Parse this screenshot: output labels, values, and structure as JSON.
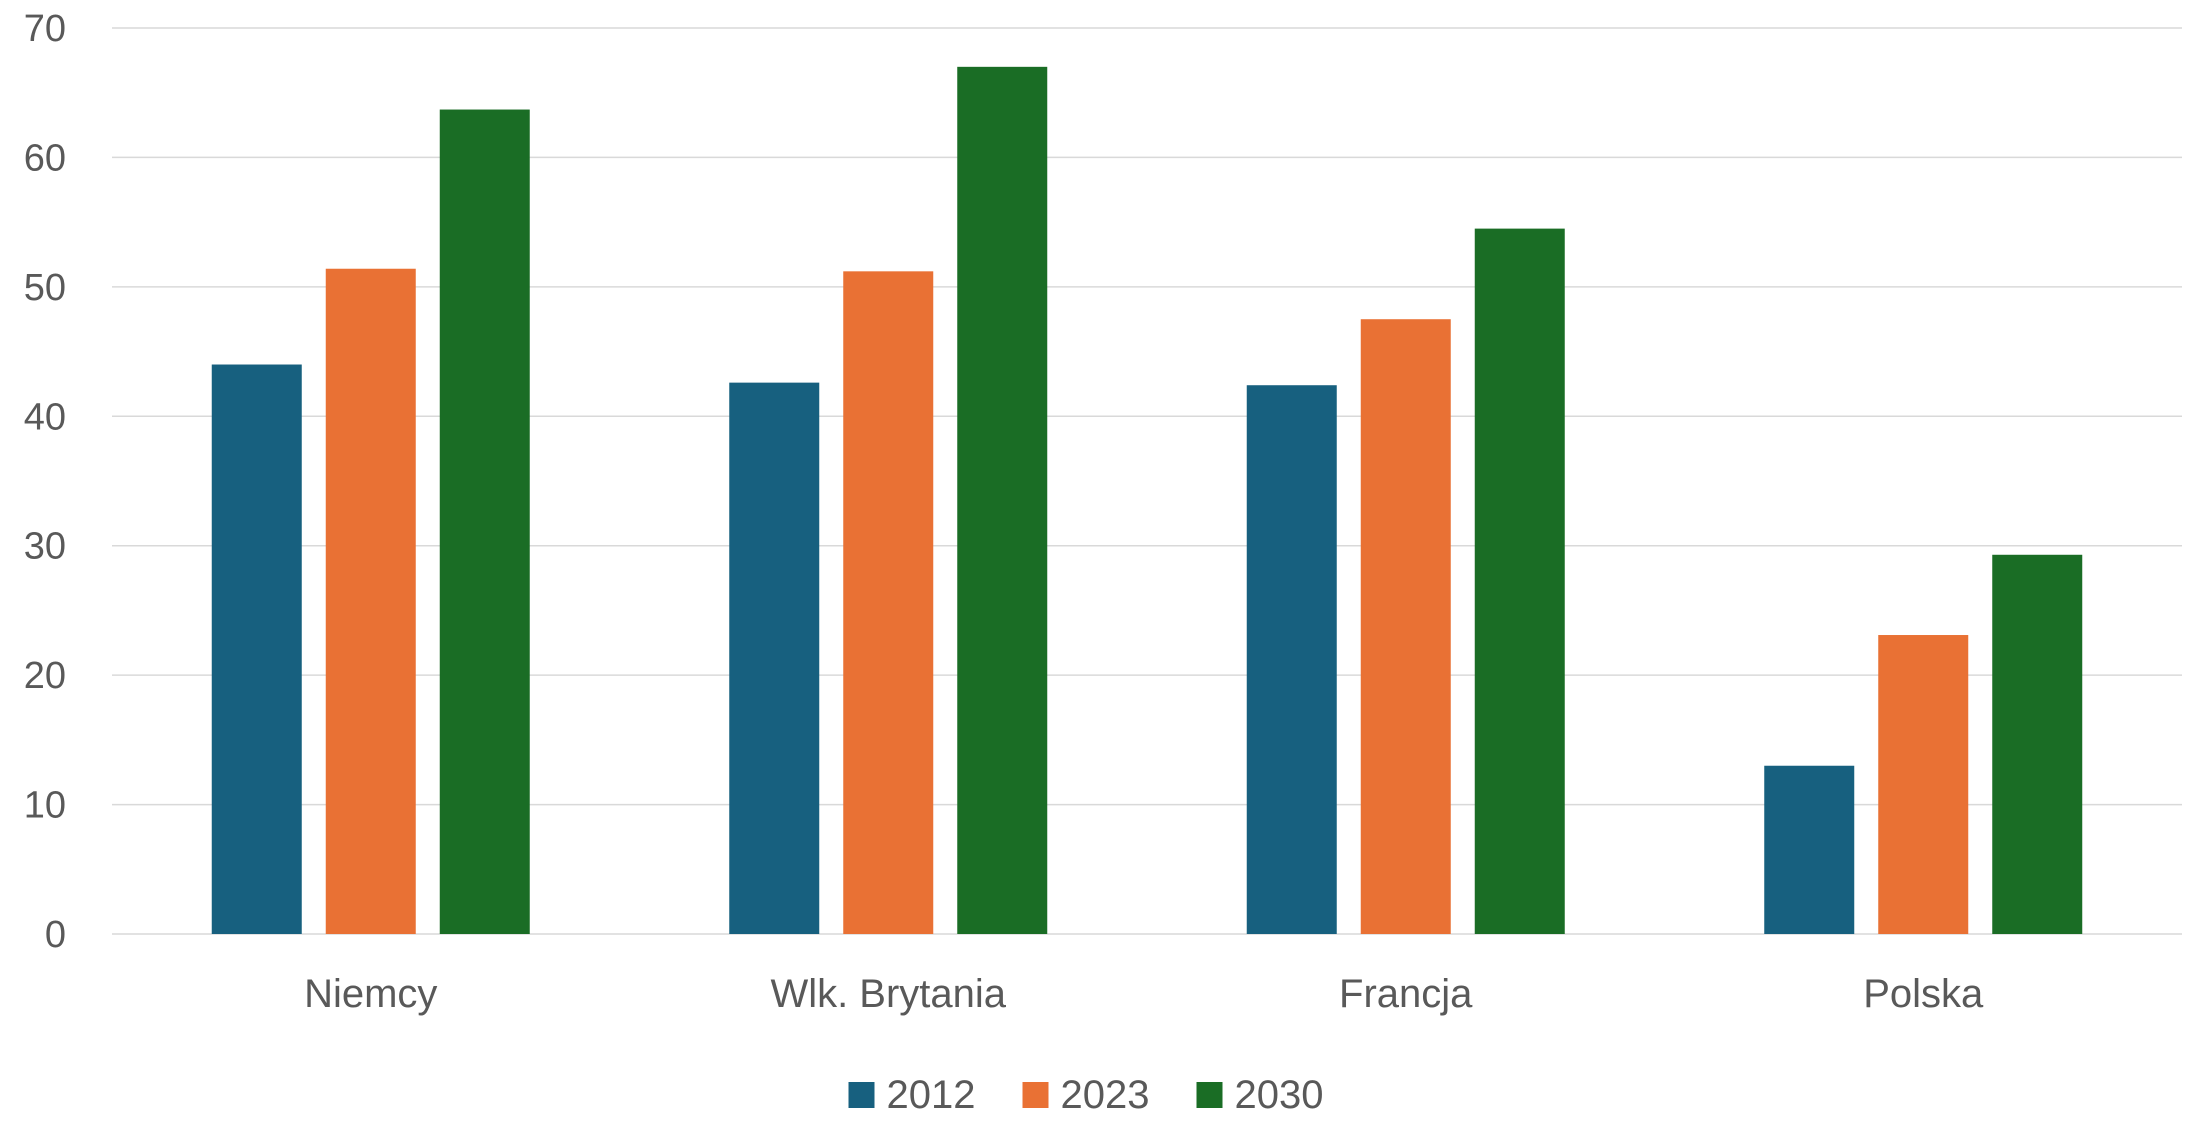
{
  "chart_data": {
    "type": "bar",
    "categories": [
      "Niemcy",
      "Wlk. Brytania",
      "Francja",
      "Polska"
    ],
    "series": [
      {
        "name": "2012",
        "color": "#17607F",
        "values": [
          44.0,
          42.6,
          42.4,
          13.0
        ]
      },
      {
        "name": "2023",
        "color": "#E97134",
        "values": [
          51.4,
          51.2,
          47.5,
          23.1
        ]
      },
      {
        "name": "2030",
        "color": "#1A6D25",
        "values": [
          63.7,
          67.0,
          54.5,
          29.3
        ]
      }
    ],
    "ylim": [
      0,
      70
    ],
    "yticks": [
      "0",
      "10",
      "20",
      "30",
      "40",
      "50",
      "60",
      "70"
    ],
    "grid": true,
    "legend": "bottom",
    "gridColor": "#D9D9D9",
    "textColor": "#595959"
  }
}
